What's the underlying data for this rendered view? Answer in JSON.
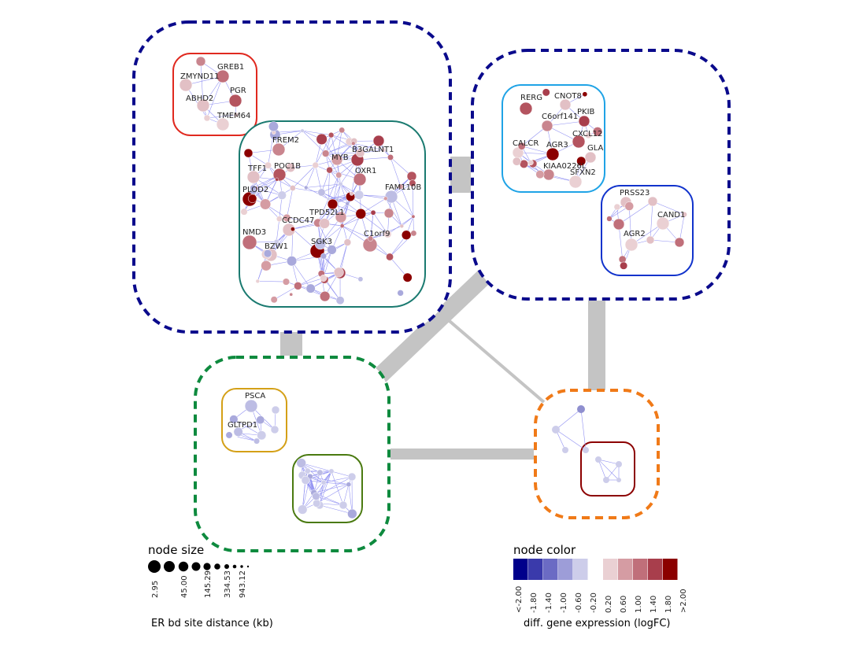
{
  "colors": {
    "super_cluster_border": "#0a0a8c",
    "green_border": "#0e8a3e",
    "orange_border": "#f07a18",
    "cluster_red": "#e0291f",
    "cluster_teal": "#1a7a70",
    "cluster_lightblue": "#1fa3e6",
    "cluster_blue": "#1133cc",
    "cluster_gold": "#d4a017",
    "cluster_olive": "#4a7a10",
    "cluster_darkred": "#8c0000",
    "inter_edge": "#c4c4c4",
    "node_edge": "#8f8ff2"
  },
  "gene_labels": {
    "greb1": "GREB1",
    "zmynd11": "ZMYND11",
    "pgr": "PGR",
    "abhd2": "ABHD2",
    "tmem64": "TMEM64",
    "frem2": "FREM2",
    "b3galnt1": "B3GALNT1",
    "myb": "MYB",
    "poc1b": "POC1B",
    "oxr1": "OXR1",
    "tff1": "TFF1",
    "fam110b": "FAM110B",
    "plod2": "PLOD2",
    "tpd52l1": "TPD52L1",
    "ccdc47": "CCDC47",
    "nmd3": "NMD3",
    "sgk3": "SGK3",
    "c1orf9": "C1orf9",
    "bzw1": "BZW1",
    "rerg": "RERG",
    "cnot8": "CNOT8",
    "pkib": "PKIB",
    "c6orf141": "C6orf141",
    "cxcl12": "CXCL12",
    "calcr": "CALCR",
    "agr3": "AGR3",
    "gla": "GLA",
    "kiaa0226l": "KIAA0226L",
    "sfxn2": "SFXN2",
    "prss23": "PRSS23",
    "cand1": "CAND1",
    "agr2": "AGR2",
    "psca": "PSCA",
    "gltpd1": "GLTPD1"
  },
  "legend_size": {
    "title": "node size",
    "ticks": [
      "2.95",
      "45.00",
      "145.29",
      "334.53",
      "943.12"
    ],
    "caption": "ER bd site distance (kb)"
  },
  "legend_color": {
    "title": "node color",
    "ticks": [
      "<-2.00",
      "-1.80",
      "-1.40",
      "-1.00",
      "-0.60",
      "-0.20",
      "0.20",
      "0.60",
      "1.00",
      "1.40",
      "1.80",
      ">2.00"
    ],
    "swatches": [
      "#00008b",
      "#3a3aab",
      "#6b6bc4",
      "#9d9dd8",
      "#cdcdea",
      "#ffffff",
      "#ead0d3",
      "#d59ca3",
      "#c06f7a",
      "#a83e4c",
      "#8b0000"
    ],
    "caption": "diff. gene expression (logFC)"
  }
}
